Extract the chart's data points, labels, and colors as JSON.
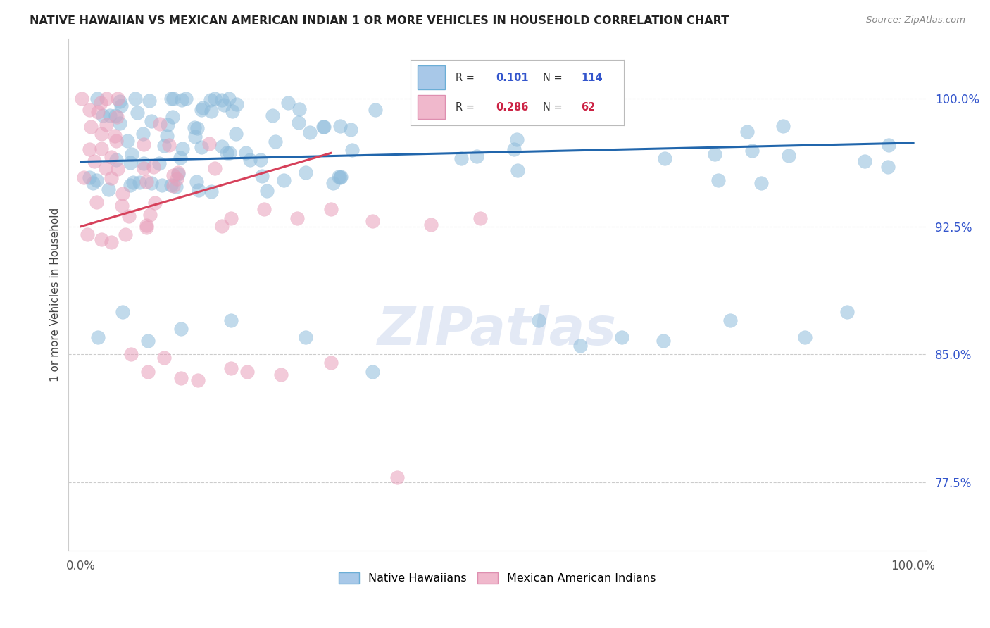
{
  "title": "NATIVE HAWAIIAN VS MEXICAN AMERICAN INDIAN 1 OR MORE VEHICLES IN HOUSEHOLD CORRELATION CHART",
  "source": "Source: ZipAtlas.com",
  "ylabel": "1 or more Vehicles in Household",
  "ytick_labels": [
    "100.0%",
    "92.5%",
    "85.0%",
    "77.5%"
  ],
  "ytick_values": [
    1.0,
    0.925,
    0.85,
    0.775
  ],
  "xlim": [
    0.0,
    1.0
  ],
  "ylim": [
    0.735,
    1.035
  ],
  "blue_scatter_color": "#8fbcdb",
  "pink_scatter_color": "#e8a0bb",
  "blue_line_color": "#2166ac",
  "pink_line_color": "#d6405a",
  "legend_blue_R": "0.101",
  "legend_blue_N": "114",
  "legend_pink_R": "0.286",
  "legend_pink_N": "62",
  "watermark_text": "ZIPatlas",
  "blue_line_x0": 0.0,
  "blue_line_y0": 0.963,
  "blue_line_x1": 1.0,
  "blue_line_y1": 0.974,
  "pink_line_x0": 0.0,
  "pink_line_y0": 0.925,
  "pink_line_x1": 0.3,
  "pink_line_y1": 0.968
}
